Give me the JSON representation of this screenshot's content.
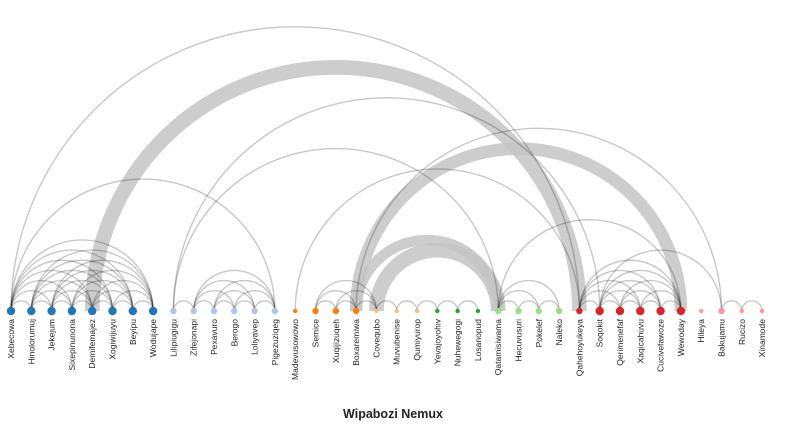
{
  "title": "Wipabozi Nemux",
  "group_colors": [
    "#1f77b4",
    "#aec7e8",
    "#ff7f0e",
    "#ffbb78",
    "#2ca02c",
    "#98df8a",
    "#d62728",
    "#ff9896"
  ],
  "nodes": [
    {
      "name": "Xebecowa",
      "group": 0,
      "weight": 3
    },
    {
      "name": "Hinolorumuj",
      "group": 0,
      "weight": 3
    },
    {
      "name": "Jekejum",
      "group": 0,
      "weight": 3
    },
    {
      "name": "Sixepinunona",
      "group": 0,
      "weight": 3
    },
    {
      "name": "Demifemajez",
      "group": 0,
      "weight": 3
    },
    {
      "name": "Xogiwijuyu",
      "group": 0,
      "weight": 3
    },
    {
      "name": "Beyipu",
      "group": 0,
      "weight": 3
    },
    {
      "name": "Wodujape",
      "group": 0,
      "weight": 3
    },
    {
      "name": "Lilipiugigu",
      "group": 1,
      "weight": 2
    },
    {
      "name": "Zifejonapi",
      "group": 1,
      "weight": 2
    },
    {
      "name": "Pexavuro",
      "group": 1,
      "weight": 2
    },
    {
      "name": "Berogo",
      "group": 1,
      "weight": 2
    },
    {
      "name": "Loliyavep",
      "group": 1,
      "weight": 2
    },
    {
      "name": "Pigezuziqeg",
      "group": 1,
      "weight": 2
    },
    {
      "name": "Madevusowowo",
      "group": 2,
      "weight": 1
    },
    {
      "name": "Semice",
      "group": 2,
      "weight": 2
    },
    {
      "name": "Xuqijizuqeh",
      "group": 2,
      "weight": 2
    },
    {
      "name": "Boxaremiwa",
      "group": 2,
      "weight": 2
    },
    {
      "name": "Covequbo",
      "group": 3,
      "weight": 1
    },
    {
      "name": "Muvubenise",
      "group": 3,
      "weight": 1
    },
    {
      "name": "Qumiyurop",
      "group": 3,
      "weight": 1
    },
    {
      "name": "Yevajoyohiv",
      "group": 4,
      "weight": 1
    },
    {
      "name": "Nuhewegogi",
      "group": 4,
      "weight": 1
    },
    {
      "name": "Losanopud",
      "group": 4,
      "weight": 1
    },
    {
      "name": "Qatamisiwama",
      "group": 5,
      "weight": 2
    },
    {
      "name": "Hecuvusuri",
      "group": 5,
      "weight": 2
    },
    {
      "name": "Pokelef",
      "group": 5,
      "weight": 2
    },
    {
      "name": "Naleko",
      "group": 5,
      "weight": 2
    },
    {
      "name": "Qahehoyukeya",
      "group": 6,
      "weight": 2
    },
    {
      "name": "Soqokit",
      "group": 6,
      "weight": 3
    },
    {
      "name": "Qerimenefaf",
      "group": 6,
      "weight": 3
    },
    {
      "name": "Xaqicahuvu",
      "group": 6,
      "weight": 3
    },
    {
      "name": "Cucivefawoze",
      "group": 6,
      "weight": 3
    },
    {
      "name": "Wewoday",
      "group": 6,
      "weight": 3
    },
    {
      "name": "Hileya",
      "group": 7,
      "weight": 1
    },
    {
      "name": "Bakujamu",
      "group": 7,
      "weight": 2
    },
    {
      "name": "Rucizo",
      "group": 7,
      "weight": 1
    },
    {
      "name": "Xinamode",
      "group": 7,
      "weight": 1
    }
  ],
  "links": [
    {
      "source": 0,
      "target": 1,
      "value": 1
    },
    {
      "source": 0,
      "target": 2,
      "value": 1
    },
    {
      "source": 0,
      "target": 3,
      "value": 1
    },
    {
      "source": 0,
      "target": 4,
      "value": 1
    },
    {
      "source": 0,
      "target": 5,
      "value": 1
    },
    {
      "source": 0,
      "target": 6,
      "value": 1
    },
    {
      "source": 0,
      "target": 7,
      "value": 1
    },
    {
      "source": 0,
      "target": 13,
      "value": 1
    },
    {
      "source": 0,
      "target": 28,
      "value": 1
    },
    {
      "source": 1,
      "target": 2,
      "value": 1
    },
    {
      "source": 1,
      "target": 3,
      "value": 1
    },
    {
      "source": 1,
      "target": 4,
      "value": 1
    },
    {
      "source": 1,
      "target": 5,
      "value": 1
    },
    {
      "source": 1,
      "target": 6,
      "value": 1
    },
    {
      "source": 1,
      "target": 7,
      "value": 1
    },
    {
      "source": 2,
      "target": 3,
      "value": 1
    },
    {
      "source": 2,
      "target": 4,
      "value": 1
    },
    {
      "source": 2,
      "target": 5,
      "value": 1
    },
    {
      "source": 2,
      "target": 6,
      "value": 1
    },
    {
      "source": 2,
      "target": 7,
      "value": 1
    },
    {
      "source": 3,
      "target": 4,
      "value": 1
    },
    {
      "source": 3,
      "target": 5,
      "value": 1
    },
    {
      "source": 3,
      "target": 6,
      "value": 1
    },
    {
      "source": 3,
      "target": 7,
      "value": 1
    },
    {
      "source": 4,
      "target": 5,
      "value": 1
    },
    {
      "source": 4,
      "target": 6,
      "value": 1
    },
    {
      "source": 4,
      "target": 7,
      "value": 1
    },
    {
      "source": 4,
      "target": 28,
      "value": 7
    },
    {
      "source": 5,
      "target": 6,
      "value": 1
    },
    {
      "source": 5,
      "target": 7,
      "value": 1
    },
    {
      "source": 6,
      "target": 7,
      "value": 1
    },
    {
      "source": 8,
      "target": 9,
      "value": 1
    },
    {
      "source": 8,
      "target": 24,
      "value": 1
    },
    {
      "source": 8,
      "target": 29,
      "value": 1
    },
    {
      "source": 9,
      "target": 10,
      "value": 1
    },
    {
      "source": 9,
      "target": 11,
      "value": 1
    },
    {
      "source": 9,
      "target": 12,
      "value": 1
    },
    {
      "source": 9,
      "target": 13,
      "value": 1
    },
    {
      "source": 10,
      "target": 11,
      "value": 1
    },
    {
      "source": 10,
      "target": 12,
      "value": 1
    },
    {
      "source": 10,
      "target": 13,
      "value": 1
    },
    {
      "source": 11,
      "target": 12,
      "value": 1
    },
    {
      "source": 11,
      "target": 13,
      "value": 1
    },
    {
      "source": 12,
      "target": 13,
      "value": 1
    },
    {
      "source": 14,
      "target": 28,
      "value": 1
    },
    {
      "source": 15,
      "target": 16,
      "value": 1
    },
    {
      "source": 15,
      "target": 17,
      "value": 1
    },
    {
      "source": 15,
      "target": 18,
      "value": 1
    },
    {
      "source": 16,
      "target": 17,
      "value": 1
    },
    {
      "source": 16,
      "target": 18,
      "value": 1
    },
    {
      "source": 17,
      "target": 18,
      "value": 1
    },
    {
      "source": 17,
      "target": 35,
      "value": 1
    },
    {
      "source": 17,
      "target": 24,
      "value": 5
    },
    {
      "source": 17,
      "target": 33,
      "value": 6
    },
    {
      "source": 18,
      "target": 19,
      "value": 1
    },
    {
      "source": 18,
      "target": 24,
      "value": 7
    },
    {
      "source": 19,
      "target": 20,
      "value": 1
    },
    {
      "source": 20,
      "target": 21,
      "value": 1
    },
    {
      "source": 21,
      "target": 22,
      "value": 1
    },
    {
      "source": 22,
      "target": 23,
      "value": 1
    },
    {
      "source": 24,
      "target": 25,
      "value": 1
    },
    {
      "source": 24,
      "target": 26,
      "value": 1
    },
    {
      "source": 24,
      "target": 27,
      "value": 1
    },
    {
      "source": 25,
      "target": 26,
      "value": 1
    },
    {
      "source": 26,
      "target": 27,
      "value": 1
    },
    {
      "source": 24,
      "target": 33,
      "value": 1
    },
    {
      "source": 28,
      "target": 29,
      "value": 1
    },
    {
      "source": 28,
      "target": 30,
      "value": 1
    },
    {
      "source": 28,
      "target": 31,
      "value": 1
    },
    {
      "source": 28,
      "target": 32,
      "value": 1
    },
    {
      "source": 28,
      "target": 33,
      "value": 1
    },
    {
      "source": 29,
      "target": 30,
      "value": 1
    },
    {
      "source": 29,
      "target": 31,
      "value": 1
    },
    {
      "source": 29,
      "target": 32,
      "value": 1
    },
    {
      "source": 29,
      "target": 33,
      "value": 1
    },
    {
      "source": 30,
      "target": 31,
      "value": 1
    },
    {
      "source": 30,
      "target": 32,
      "value": 1
    },
    {
      "source": 30,
      "target": 33,
      "value": 1
    },
    {
      "source": 31,
      "target": 32,
      "value": 1
    },
    {
      "source": 31,
      "target": 33,
      "value": 1
    },
    {
      "source": 32,
      "target": 33,
      "value": 1
    },
    {
      "source": 29,
      "target": 35,
      "value": 1
    },
    {
      "source": 35,
      "target": 36,
      "value": 1
    },
    {
      "source": 36,
      "target": 37,
      "value": 1
    }
  ]
}
